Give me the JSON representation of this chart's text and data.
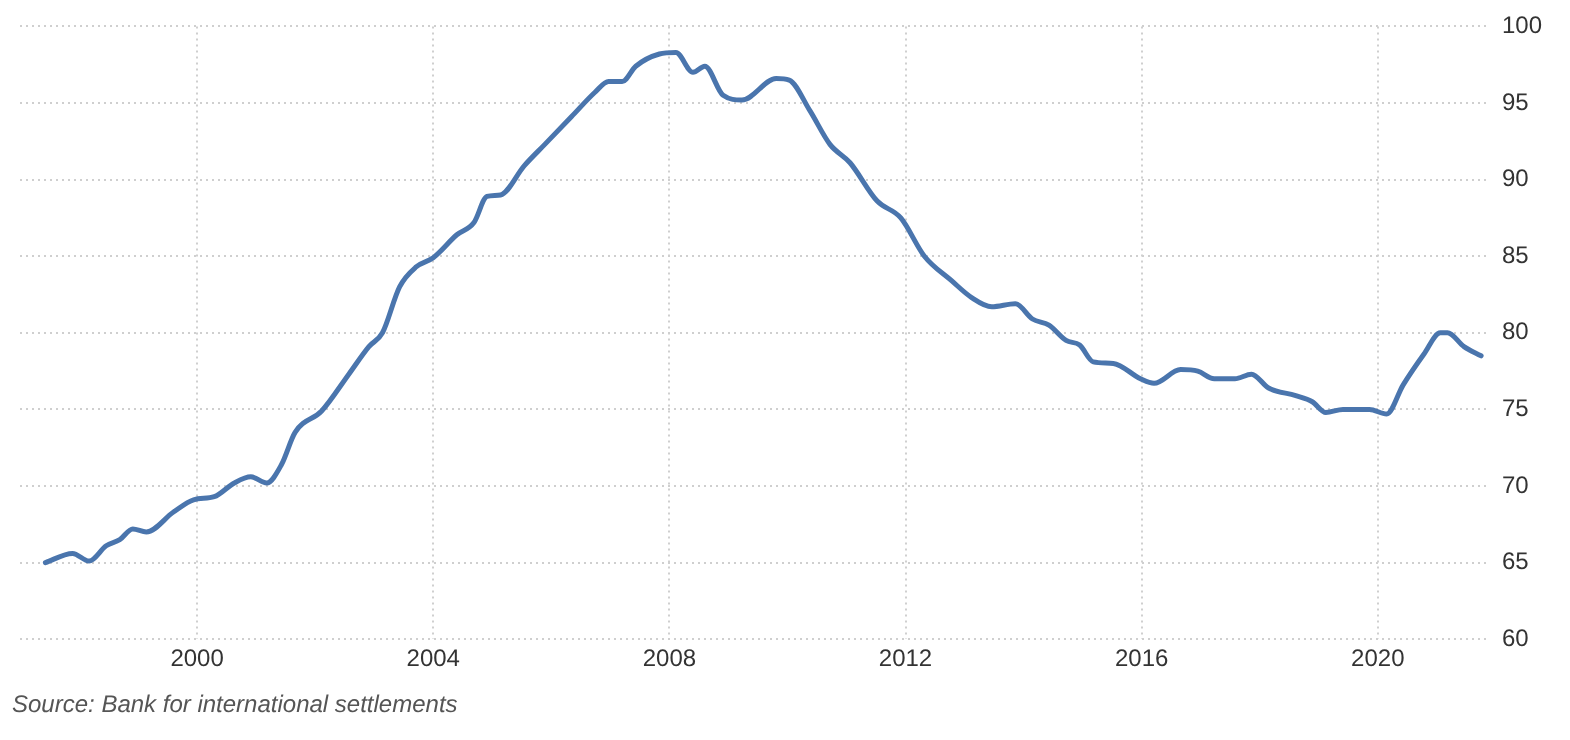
{
  "chart_data": {
    "type": "line",
    "x": [
      1997.43,
      1997.89,
      1998.17,
      1998.46,
      1998.69,
      1998.91,
      1999.14,
      1999.6,
      1999.94,
      2000.29,
      2000.63,
      2000.91,
      2001.18,
      2001.43,
      2001.66,
      2002.11,
      2002.57,
      2002.91,
      2003.14,
      2003.43,
      2003.71,
      2004.0,
      2004.4,
      2004.69,
      2004.91,
      2005.14,
      2005.54,
      2005.89,
      2006.34,
      2006.74,
      2006.97,
      2007.2,
      2007.43,
      2007.83,
      2008.11,
      2008.4,
      2008.6,
      2008.91,
      2009.23,
      2009.81,
      2010.03,
      2010.38,
      2010.72,
      2011.06,
      2011.52,
      2011.92,
      2012.32,
      2012.78,
      2013.12,
      2013.46,
      2013.86,
      2014.15,
      2014.43,
      2014.72,
      2014.95,
      2015.18,
      2015.52,
      2015.98,
      2016.21,
      2016.66,
      2016.95,
      2017.23,
      2017.58,
      2017.86,
      2018.15,
      2018.61,
      2018.89,
      2019.12,
      2019.41,
      2019.86,
      2020.15,
      2020.43,
      2020.78,
      2021.06,
      2021.18,
      2021.46,
      2021.75
    ],
    "series": [
      {
        "color": "#4a75ad",
        "values": [
          65.0,
          65.6,
          65.1,
          66.1,
          66.5,
          67.2,
          67.0,
          68.3,
          69.1,
          69.3,
          70.2,
          70.6,
          70.2,
          71.4,
          73.5,
          74.9,
          77.3,
          79.1,
          80.0,
          83.0,
          84.3,
          84.9,
          86.4,
          87.2,
          88.9,
          89.0,
          90.9,
          92.3,
          94.1,
          95.7,
          96.4,
          96.4,
          97.4,
          98.2,
          98.3,
          97.0,
          97.4,
          95.5,
          95.2,
          96.6,
          96.5,
          94.5,
          92.3,
          91.1,
          88.6,
          87.5,
          85.0,
          83.4,
          82.3,
          81.7,
          81.9,
          80.9,
          80.5,
          79.5,
          79.2,
          78.1,
          78.0,
          77.0,
          76.7,
          77.6,
          77.5,
          77.0,
          77.0,
          77.3,
          76.4,
          75.9,
          75.5,
          74.8,
          75.0,
          75.0,
          74.7,
          76.6,
          78.6,
          80.0,
          80.0,
          79.1,
          78.5
        ]
      }
    ],
    "xlim": [
      1997,
      2021.9
    ],
    "xticks": [
      2000,
      2004,
      2008,
      2012,
      2016,
      2020
    ],
    "ylim": [
      60,
      100
    ],
    "yticks": [
      60,
      65,
      70,
      75,
      80,
      85,
      90,
      95,
      100
    ],
    "grid": true,
    "legend": false,
    "marker": "none",
    "line_style": "solid",
    "annotations": [
      "Source: Bank for international settlements"
    ]
  }
}
